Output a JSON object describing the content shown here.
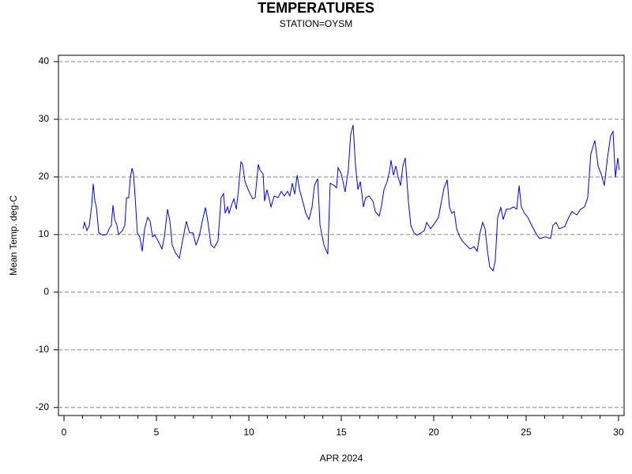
{
  "chart_data": {
    "type": "line",
    "title": "TEMPERATURES",
    "subtitle": "STATION=OYSM",
    "y_label": "Mean Temp. deg-C",
    "x_label": "APR 2024",
    "xlim": [
      -0.3,
      30.3
    ],
    "xticks": [
      0,
      5,
      10,
      15,
      20,
      25,
      30
    ],
    "xminorticks": [
      1,
      2,
      3,
      4,
      6,
      7,
      8,
      9,
      11,
      12,
      13,
      14,
      16,
      17,
      18,
      19,
      21,
      22,
      23,
      24,
      26,
      27,
      28,
      29
    ],
    "ylim": [
      -21.4,
      41.1
    ],
    "yticks": [
      -20,
      -10,
      0,
      10,
      20,
      30,
      40
    ],
    "grid": true,
    "series": [
      {
        "name": "Mean Temp.",
        "color": "#0000ff",
        "x": [
          1.03,
          1.11,
          1.24,
          1.37,
          1.5,
          1.58,
          1.67,
          1.75,
          1.88,
          2.09,
          2.31,
          2.44,
          2.56,
          2.65,
          2.74,
          2.86,
          2.95,
          3.16,
          3.29,
          3.38,
          3.5,
          3.59,
          3.68,
          3.76,
          3.85,
          3.97,
          4.1,
          4.23,
          4.36,
          4.53,
          4.66,
          4.79,
          4.91,
          5.09,
          5.3,
          5.43,
          5.6,
          5.73,
          5.85,
          6.03,
          6.24,
          6.41,
          6.62,
          6.79,
          6.97,
          7.14,
          7.31,
          7.48,
          7.65,
          7.78,
          7.95,
          8.12,
          8.33,
          8.5,
          8.63,
          8.72,
          8.85,
          8.93,
          9.06,
          9.19,
          9.32,
          9.44,
          9.57,
          9.66,
          9.79,
          10.0,
          10.21,
          10.34,
          10.51,
          10.6,
          10.77,
          10.85,
          10.98,
          11.2,
          11.37,
          11.58,
          11.75,
          11.92,
          12.09,
          12.22,
          12.35,
          12.48,
          12.61,
          12.74,
          12.86,
          13.08,
          13.25,
          13.42,
          13.55,
          13.72,
          13.85,
          14.06,
          14.27,
          14.4,
          14.62,
          14.74,
          14.83,
          15.0,
          15.21,
          15.38,
          15.51,
          15.64,
          15.77,
          15.9,
          16.03,
          16.2,
          16.32,
          16.5,
          16.71,
          16.84,
          17.05,
          17.18,
          17.31,
          17.48,
          17.61,
          17.69,
          17.82,
          17.95,
          18.08,
          18.21,
          18.33,
          18.46,
          18.63,
          18.76,
          18.93,
          19.1,
          19.32,
          19.49,
          19.62,
          19.83,
          20.04,
          20.26,
          20.38,
          20.56,
          20.73,
          20.85,
          20.98,
          21.11,
          21.24,
          21.41,
          21.54,
          21.75,
          21.97,
          22.18,
          22.35,
          22.52,
          22.65,
          22.78,
          22.91,
          23.03,
          23.21,
          23.33,
          23.46,
          23.63,
          23.76,
          23.93,
          24.1,
          24.32,
          24.49,
          24.62,
          24.74,
          24.91,
          25.09,
          25.3,
          25.51,
          25.73,
          26.03,
          26.32,
          26.45,
          26.62,
          26.79,
          27.09,
          27.31,
          27.48,
          27.74,
          27.95,
          28.16,
          28.33,
          28.5,
          28.72,
          28.89,
          29.06,
          29.23,
          29.4,
          29.57,
          29.7,
          29.83,
          29.96,
          30.04
        ],
        "values": [
          11.0,
          12.1,
          10.7,
          11.6,
          15.1,
          18.8,
          15.8,
          14.8,
          10.3,
          9.9,
          10.0,
          11.0,
          11.6,
          15.1,
          12.6,
          11.6,
          10.0,
          10.7,
          11.6,
          16.4,
          16.4,
          19.9,
          21.5,
          20.5,
          16.4,
          10.3,
          9.6,
          7.1,
          11.0,
          13.0,
          12.3,
          9.6,
          9.9,
          8.9,
          7.5,
          9.6,
          14.4,
          12.3,
          8.2,
          6.8,
          5.9,
          8.9,
          12.3,
          10.3,
          10.3,
          8.2,
          9.6,
          12.3,
          14.7,
          12.3,
          8.2,
          7.7,
          8.9,
          16.4,
          17.1,
          13.7,
          14.8,
          13.7,
          15.1,
          16.2,
          14.4,
          17.8,
          22.6,
          22.2,
          19.2,
          17.5,
          16.2,
          16.4,
          22.2,
          21.2,
          20.5,
          15.8,
          17.8,
          14.8,
          16.7,
          16.4,
          17.5,
          16.7,
          17.5,
          16.7,
          18.9,
          17.0,
          20.3,
          17.8,
          16.4,
          13.7,
          12.6,
          14.8,
          18.5,
          19.7,
          11.6,
          8.2,
          6.6,
          18.9,
          18.5,
          18.1,
          21.6,
          20.5,
          17.4,
          21.2,
          27.4,
          29.0,
          21.9,
          17.8,
          19.2,
          14.8,
          16.4,
          16.7,
          15.8,
          14.0,
          13.2,
          15.1,
          17.8,
          19.2,
          21.0,
          22.9,
          20.3,
          21.9,
          19.9,
          18.5,
          21.9,
          23.3,
          15.8,
          11.6,
          10.3,
          9.9,
          10.3,
          10.7,
          12.1,
          11.0,
          11.9,
          13.0,
          15.1,
          18.1,
          19.5,
          14.8,
          13.7,
          14.0,
          11.0,
          9.6,
          8.9,
          8.2,
          7.5,
          7.9,
          7.1,
          10.5,
          12.1,
          11.0,
          7.1,
          4.4,
          3.7,
          5.5,
          13.0,
          14.7,
          12.6,
          14.4,
          14.4,
          14.8,
          14.4,
          18.5,
          14.8,
          13.7,
          13.0,
          11.6,
          10.3,
          9.3,
          9.6,
          9.3,
          11.6,
          12.1,
          11.0,
          11.4,
          13.0,
          14.0,
          13.4,
          14.4,
          14.8,
          16.4,
          24.0,
          26.3,
          21.9,
          20.5,
          18.5,
          23.3,
          27.1,
          27.9,
          19.9,
          23.3,
          21.2
        ]
      }
    ]
  }
}
